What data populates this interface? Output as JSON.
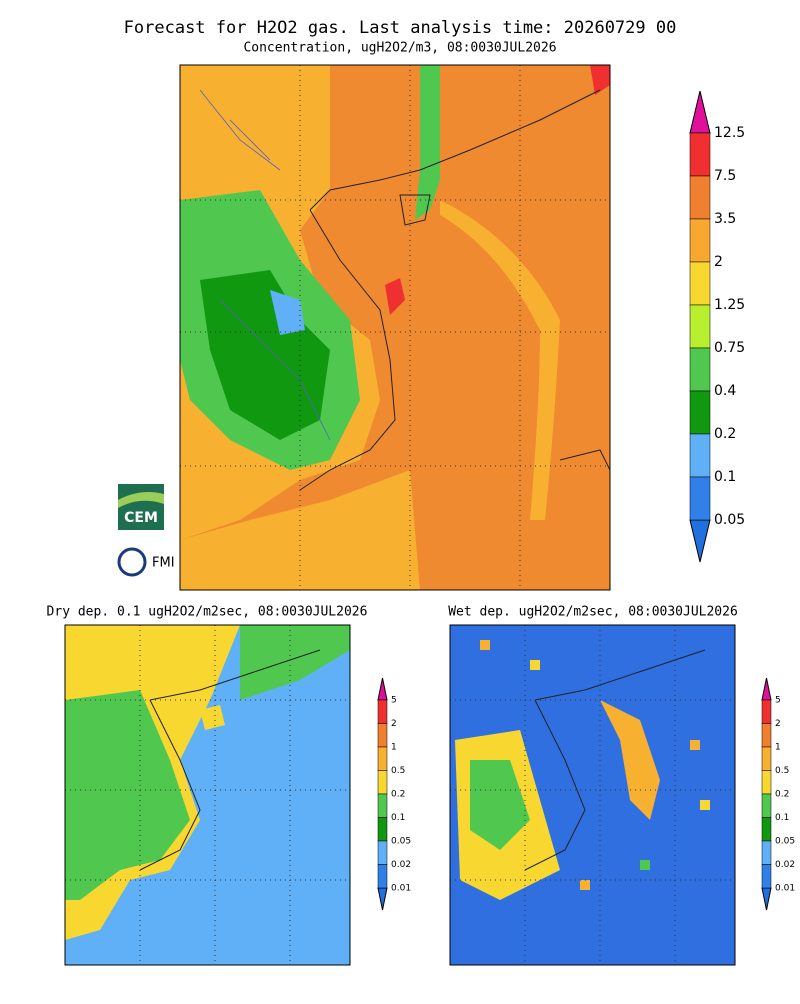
{
  "header": {
    "title": "Forecast for H2O2 gas. Last analysis time: 20260729 00",
    "subtitle": "Concentration, ugH2O2/m3, 08:0030JUL2026"
  },
  "main_map": {
    "colorbar": {
      "labels": [
        "12.5",
        "7.5",
        "3.5",
        "2",
        "1.25",
        "0.75",
        "0.4",
        "0.2",
        "0.1",
        "0.05"
      ],
      "colors": [
        "#f03030",
        "#f08030",
        "#f8a830",
        "#f8d830",
        "#b8f030",
        "#50c850",
        "#109810",
        "#60b0f8",
        "#3080e8"
      ],
      "over_color": "#e0109a",
      "under_color": "#2070e0"
    }
  },
  "dry_map": {
    "title": "Dry dep. 0.1 ugH2O2/m2sec, 08:0030JUL2026",
    "colorbar": {
      "labels": [
        "5",
        "2",
        "1",
        "0.5",
        "0.2",
        "0.1",
        "0.05",
        "0.02",
        "0.01"
      ],
      "colors": [
        "#f03030",
        "#f08030",
        "#f8b030",
        "#f8d830",
        "#50c850",
        "#109810",
        "#60b0f8",
        "#3080e8"
      ],
      "over_color": "#e0109a",
      "under_color": "#2070e0"
    }
  },
  "wet_map": {
    "title": "Wet dep. ugH2O2/m2sec, 08:0030JUL2026",
    "colorbar": {
      "labels": [
        "5",
        "2",
        "1",
        "0.5",
        "0.2",
        "0.1",
        "0.05",
        "0.02",
        "0.01"
      ],
      "colors": [
        "#f03030",
        "#f08030",
        "#f8b030",
        "#f8d830",
        "#50c850",
        "#109810",
        "#60b0f8",
        "#3080e8"
      ],
      "over_color": "#e0109a",
      "under_color": "#2070e0"
    }
  },
  "logos": {
    "cem": "CEM",
    "fmi": "FMI"
  }
}
